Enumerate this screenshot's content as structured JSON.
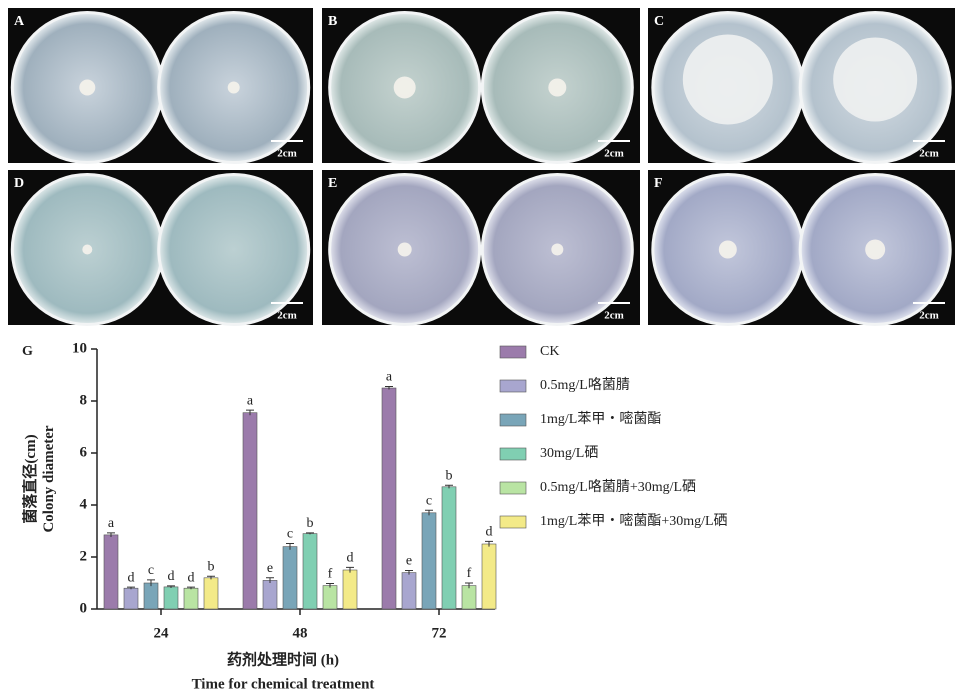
{
  "panels": [
    {
      "label": "A",
      "scale": "2cm"
    },
    {
      "label": "B",
      "scale": "2cm"
    },
    {
      "label": "C",
      "scale": "2cm"
    },
    {
      "label": "D",
      "scale": "2cm"
    },
    {
      "label": "E",
      "scale": "2cm"
    },
    {
      "label": "F",
      "scale": "2cm"
    }
  ],
  "chart_data": {
    "type": "bar",
    "figure_label": "G",
    "y_label": [
      "菌落直径(cm)",
      "Colony diameter"
    ],
    "x_label": [
      "药剂处理时间 (h)",
      "Time for chemical treatment"
    ],
    "categories": [
      "24",
      "48",
      "72"
    ],
    "ylim": [
      0,
      10
    ],
    "yticks": [
      0,
      2,
      4,
      6,
      8,
      10
    ],
    "grid": false,
    "series": [
      {
        "name": "CK",
        "color": "#9b7bab",
        "values": [
          2.85,
          7.55,
          8.5
        ],
        "errors": [
          0.08,
          0.1,
          0.06
        ],
        "letters": [
          "a",
          "a",
          "a"
        ]
      },
      {
        "name": "0.5mg/L咯菌腈",
        "color": "#a8a6cf",
        "values": [
          0.8,
          1.1,
          1.4
        ],
        "errors": [
          0.04,
          0.1,
          0.08
        ],
        "letters": [
          "d",
          "e",
          "e"
        ]
      },
      {
        "name": "1mg/L苯甲・嘧菌酯",
        "color": "#79a5b8",
        "values": [
          1.0,
          2.4,
          3.7
        ],
        "errors": [
          0.12,
          0.12,
          0.1
        ],
        "letters": [
          "c",
          "c",
          "c"
        ]
      },
      {
        "name": "30mg/L硒",
        "color": "#80cfb2",
        "values": [
          0.85,
          2.9,
          4.7
        ],
        "errors": [
          0.04,
          0.03,
          0.06
        ],
        "letters": [
          "d",
          "b",
          "b"
        ]
      },
      {
        "name": "0.5mg/L咯菌腈+30mg/L硒",
        "color": "#b9e4a3",
        "values": [
          0.8,
          0.9,
          0.9
        ],
        "errors": [
          0.04,
          0.08,
          0.1
        ],
        "letters": [
          "d",
          "f",
          "f"
        ]
      },
      {
        "name": "1mg/L苯甲・嘧菌酯+30mg/L硒",
        "color": "#f3ea88",
        "values": [
          1.2,
          1.5,
          2.5
        ],
        "errors": [
          0.06,
          0.1,
          0.1
        ],
        "letters": [
          "b",
          "d",
          "d"
        ]
      }
    ]
  }
}
